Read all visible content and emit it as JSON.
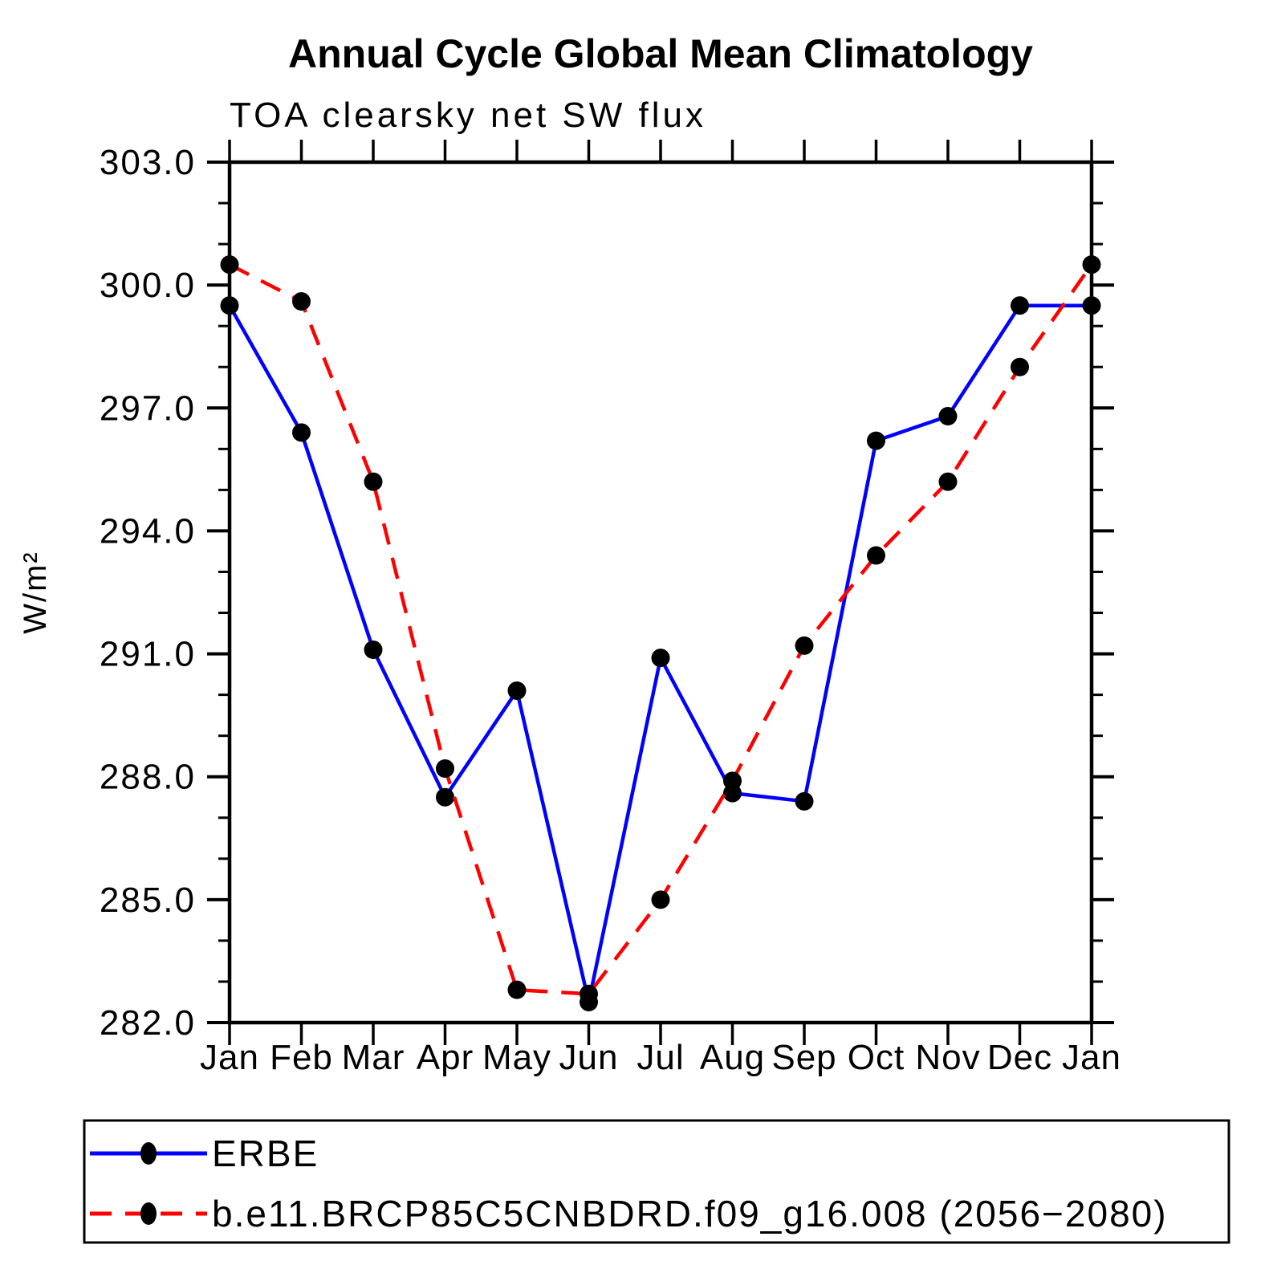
{
  "chart": {
    "title": "Annual Cycle Global Mean Climatology",
    "subtitle": "TOA clearsky net SW flux",
    "ylabel": "W/m²",
    "series": [
      {
        "name": "ERBE",
        "color": "#0000ff"
      },
      {
        "name": "b.e11.BRCP85C5CNBDRD.f09_g16.008 (2056−2080)",
        "color": "#ff0000"
      }
    ]
  },
  "chart_data": {
    "type": "line",
    "title": "Annual Cycle Global Mean Climatology",
    "subtitle": "TOA clearsky net SW flux",
    "xlabel": "",
    "ylabel": "W/m²",
    "categories": [
      "Jan",
      "Feb",
      "Mar",
      "Apr",
      "May",
      "Jun",
      "Jul",
      "Aug",
      "Sep",
      "Oct",
      "Nov",
      "Dec",
      "Jan"
    ],
    "ylim": [
      282.0,
      303.0
    ],
    "ytick_major_step": 3.0,
    "ytick_minor_step": 1.0,
    "ytick_labels": [
      "282.0",
      "285.0",
      "288.0",
      "291.0",
      "294.0",
      "297.0",
      "300.0",
      "303.0"
    ],
    "grid": false,
    "legend_position": "bottom",
    "marker": "filled-circle",
    "marker_color": "#000000",
    "series": [
      {
        "name": "ERBE",
        "color": "#0000ff",
        "line_style": "solid",
        "values": [
          299.5,
          296.4,
          291.1,
          287.5,
          290.1,
          282.5,
          290.9,
          287.6,
          287.4,
          296.2,
          296.8,
          299.5,
          299.5
        ]
      },
      {
        "name": "b.e11.BRCP85C5CNBDRD.f09_g16.008 (2056−2080)",
        "color": "#ff0000",
        "line_style": "dashed",
        "values": [
          300.5,
          299.6,
          295.2,
          288.2,
          282.8,
          282.7,
          285.0,
          287.9,
          291.2,
          293.4,
          295.2,
          298.0,
          300.5
        ]
      }
    ]
  }
}
